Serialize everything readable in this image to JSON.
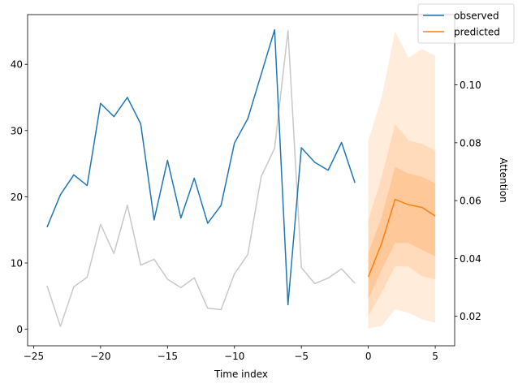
{
  "chart_data": {
    "type": "line",
    "title": "",
    "xlabel": "Time index",
    "ylabel": "",
    "ylabel_right": "Attention",
    "xlim": [
      -25.45,
      6.45
    ],
    "ylim": [
      -2.5,
      47.5
    ],
    "ylim_right": [
      0.0098,
      0.1243
    ],
    "xticks": [
      -25,
      -20,
      -15,
      -10,
      -5,
      0,
      5
    ],
    "xtick_labels": [
      "−25",
      "−20",
      "−15",
      "−10",
      "−5",
      "0",
      "5"
    ],
    "yticks": [
      0,
      10,
      20,
      30,
      40
    ],
    "ytick_labels": [
      "0",
      "10",
      "20",
      "30",
      "40"
    ],
    "yticks_right": [
      0.02,
      0.04,
      0.06,
      0.08,
      0.1
    ],
    "ytick_right_labels": [
      "0.02",
      "0.04",
      "0.06",
      "0.08",
      "0.10"
    ],
    "grid": false,
    "legend_position": "top-right",
    "series": [
      {
        "name": "observed",
        "color": "#1f77b4",
        "axis": "left",
        "x": [
          -24,
          -23,
          -22,
          -21,
          -20,
          -19,
          -18,
          -17,
          -16,
          -15,
          -14,
          -13,
          -12,
          -11,
          -10,
          -9,
          -8,
          -7,
          -6,
          -5,
          -4,
          -3,
          -2,
          -1
        ],
        "values": [
          15.4,
          20.3,
          23.3,
          21.7,
          34.1,
          32.1,
          35.0,
          31.0,
          16.5,
          25.5,
          16.8,
          22.8,
          16.0,
          18.7,
          28.1,
          31.8,
          38.5,
          45.2,
          3.7,
          27.4,
          25.2,
          24.0,
          28.2,
          22.1
        ]
      },
      {
        "name": "predicted",
        "color": "#ff7f0e",
        "axis": "left",
        "x": [
          0,
          1,
          2,
          3,
          4,
          5
        ],
        "values": [
          7.9,
          13.0,
          19.6,
          18.8,
          18.4,
          17.1
        ]
      },
      {
        "name": "",
        "color": "#c8c8c8",
        "axis": "right",
        "x": [
          -24,
          -23,
          -22,
          -21,
          -20,
          -19,
          -18,
          -17,
          -16,
          -15,
          -14,
          -13,
          -12,
          -11,
          -10,
          -9,
          -8,
          -7,
          -6,
          -5,
          -4,
          -3,
          -2,
          -1
        ],
        "values": [
          0.0306,
          0.0165,
          0.0302,
          0.0335,
          0.0518,
          0.0417,
          0.0584,
          0.0377,
          0.0397,
          0.0328,
          0.0299,
          0.0333,
          0.0228,
          0.0223,
          0.0347,
          0.0414,
          0.0683,
          0.0781,
          0.1188,
          0.0368,
          0.0313,
          0.0332,
          0.0364,
          0.0314
        ]
      }
    ],
    "prediction_bands": {
      "color": "#ff7f0e",
      "x": [
        0,
        1,
        2,
        3,
        4,
        5
      ],
      "bands": [
        {
          "opacity": 0.15,
          "lower": [
            0.1,
            0.5,
            3.0,
            2.5,
            1.5,
            1.0
          ],
          "upper": [
            28.5,
            35.0,
            45.0,
            41.0,
            42.3,
            41.3
          ]
        },
        {
          "opacity": 0.15,
          "lower": [
            2.0,
            5.5,
            9.5,
            9.5,
            8.0,
            7.5
          ],
          "upper": [
            16.5,
            23.0,
            31.0,
            28.5,
            28.0,
            27.0
          ]
        },
        {
          "opacity": 0.2,
          "lower": [
            4.5,
            9.0,
            13.0,
            13.0,
            12.0,
            11.0
          ],
          "upper": [
            11.5,
            17.0,
            24.5,
            23.5,
            23.0,
            22.0
          ]
        }
      ]
    }
  }
}
